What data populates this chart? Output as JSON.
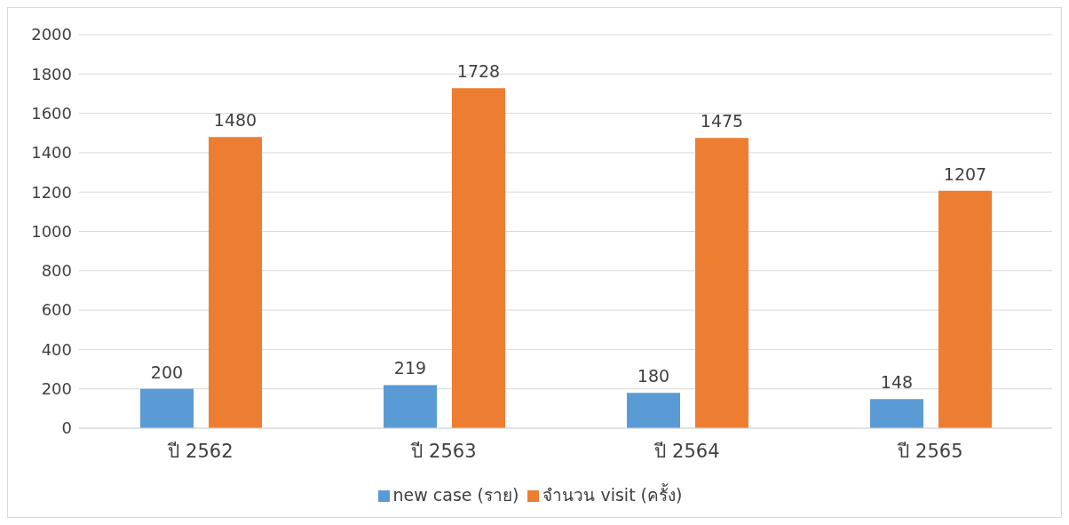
{
  "chart_data": {
    "type": "bar",
    "categories": [
      "ปี 2562",
      "ปี 2563",
      "ปี 2564",
      "ปี 2565"
    ],
    "series": [
      {
        "name": "new case (ราย)",
        "color": "#5b9bd5",
        "values": [
          200,
          219,
          180,
          148
        ]
      },
      {
        "name": "จำนวน visit (ครั้ง)",
        "color": "#ed7d31",
        "values": [
          1480,
          1728,
          1475,
          1207
        ]
      }
    ],
    "ylim": [
      0,
      2000
    ],
    "yticks": [
      0,
      200,
      400,
      600,
      800,
      1000,
      1200,
      1400,
      1600,
      1800,
      2000
    ],
    "grid": "y",
    "legend": "bottom",
    "data_labels": true
  }
}
